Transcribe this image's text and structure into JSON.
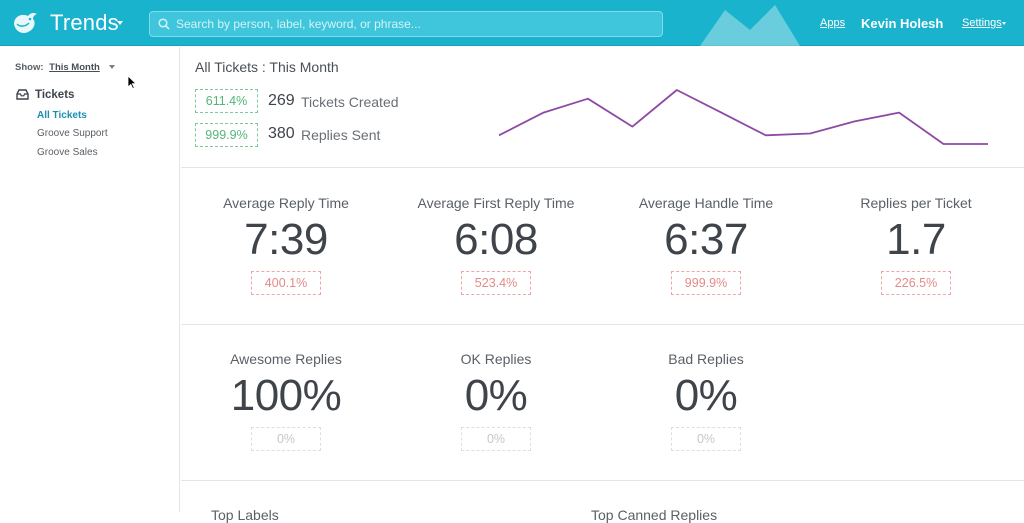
{
  "header": {
    "app_title": "Trends",
    "search_placeholder": "Search by person, label, keyword, or phrase...",
    "apps_link": "Apps",
    "user_name": "Kevin Holesh",
    "settings_link": "Settings",
    "accent_color": "#1ab3cd"
  },
  "sidebar": {
    "show_label": "Show:",
    "show_value": "This Month",
    "section_title": "Tickets",
    "items": [
      {
        "label": "All Tickets",
        "active": true
      },
      {
        "label": "Groove Support",
        "active": false
      },
      {
        "label": "Groove Sales",
        "active": false
      }
    ]
  },
  "summary": {
    "title": "All Tickets : This Month",
    "created": {
      "change": "611.4%",
      "count": "269",
      "label": "Tickets Created"
    },
    "replies": {
      "change": "999.9%",
      "count": "380",
      "label": "Replies Sent"
    },
    "sparkline_values": [
      2,
      15,
      23,
      7,
      28,
      15,
      2,
      3,
      10,
      15,
      -3,
      -3
    ]
  },
  "metrics": [
    {
      "label": "Average Reply Time",
      "value": "7:39",
      "change": "400.1%"
    },
    {
      "label": "Average First Reply Time",
      "value": "6:08",
      "change": "523.4%"
    },
    {
      "label": "Average Handle Time",
      "value": "6:37",
      "change": "999.9%"
    },
    {
      "label": "Replies per Ticket",
      "value": "1.7",
      "change": "226.5%"
    }
  ],
  "ratings": [
    {
      "label": "Awesome Replies",
      "value": "100%",
      "change": "0%"
    },
    {
      "label": "OK Replies",
      "value": "0%",
      "change": "0%"
    },
    {
      "label": "Bad Replies",
      "value": "0%",
      "change": "0%"
    }
  ],
  "bottom_partial": {
    "left": "Top Labels",
    "right": "Top Canned Replies"
  }
}
